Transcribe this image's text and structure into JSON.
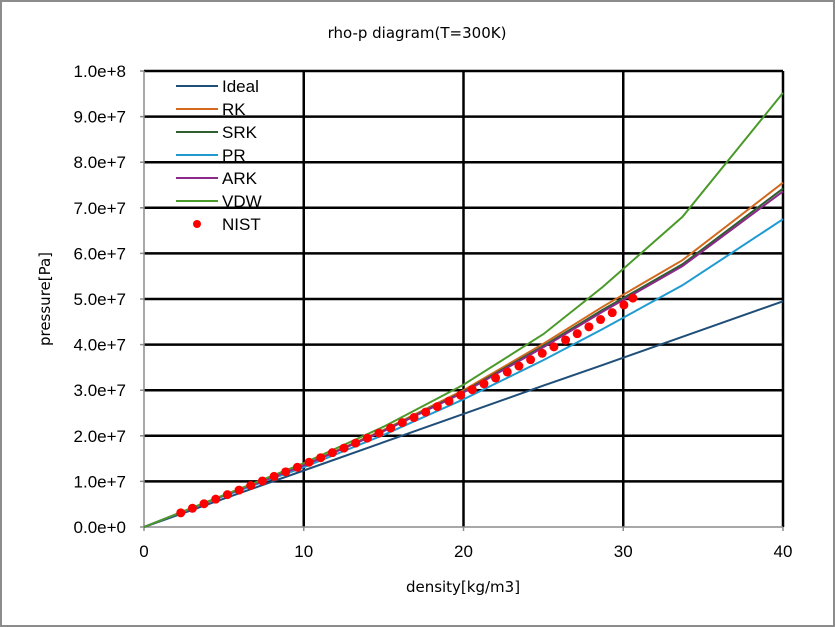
{
  "chart_data": {
    "type": "line",
    "title": "rho-p diagram(T=300K)",
    "xlabel": "density[kg/m3]",
    "ylabel": "pressure[Pa]",
    "xlim": [
      0,
      40
    ],
    "ylim": [
      0,
      100000000
    ],
    "grid": true,
    "legend": "top-left",
    "x_ticks": [
      0,
      10,
      20,
      30,
      40
    ],
    "x_tick_labels": [
      "0",
      "10",
      "20",
      "30",
      "40"
    ],
    "y_ticks": [
      0,
      10000000,
      20000000,
      30000000,
      40000000,
      50000000,
      60000000,
      70000000,
      80000000,
      90000000,
      100000000
    ],
    "y_tick_labels": [
      "0.0e+0",
      "1.0e+7",
      "2.0e+7",
      "3.0e+7",
      "4.0e+7",
      "5.0e+7",
      "6.0e+7",
      "7.0e+7",
      "8.0e+7",
      "9.0e+7",
      "1.0e+8"
    ],
    "series": [
      {
        "name": "Ideal",
        "kind": "line",
        "color": "#1f4e79",
        "x": [
          0,
          5,
          10,
          15,
          20,
          25,
          28.7,
          33.7,
          40
        ],
        "y": [
          0,
          6200000,
          12400000,
          18600000,
          24800000,
          31000000,
          35500000,
          41700000,
          49500000
        ]
      },
      {
        "name": "RK",
        "kind": "line",
        "color": "#d2691e",
        "x": [
          0,
          5,
          10,
          15,
          20,
          25,
          28.7,
          33.7,
          40
        ],
        "y": [
          0,
          6900000,
          13600000,
          21300000,
          30000000,
          40200000,
          48300000,
          58500000,
          75500000
        ]
      },
      {
        "name": "SRK",
        "kind": "line",
        "color": "#2e5e2e",
        "x": [
          0,
          5,
          10,
          15,
          20,
          25,
          28.7,
          33.7,
          40
        ],
        "y": [
          0,
          6900000,
          13500000,
          21100000,
          29700000,
          39700000,
          47600000,
          57600000,
          74200000
        ]
      },
      {
        "name": "PR",
        "kind": "line",
        "color": "#1f9bd1",
        "x": [
          0,
          5,
          10,
          15,
          20,
          25,
          28.7,
          33.7,
          40
        ],
        "y": [
          0,
          6800000,
          13100000,
          20200000,
          28000000,
          36600000,
          43400000,
          53000000,
          67500000
        ]
      },
      {
        "name": "ARK",
        "kind": "line",
        "color": "#8b2a8b",
        "x": [
          0,
          5,
          10,
          15,
          20,
          25,
          28.7,
          33.7,
          40
        ],
        "y": [
          0,
          6900000,
          13500000,
          21000000,
          29500000,
          39400000,
          47200000,
          57200000,
          73600000
        ]
      },
      {
        "name": "VDW",
        "kind": "line",
        "color": "#4a9a2a",
        "x": [
          0,
          5,
          10,
          15,
          20,
          25,
          28.7,
          33.7,
          40
        ],
        "y": [
          0,
          7000000,
          14000000,
          22000000,
          31200000,
          42300000,
          52600000,
          68000000,
          95200000
        ]
      },
      {
        "name": "NIST",
        "kind": "scatter",
        "color": "#ff0000",
        "x": [
          2.3,
          3.03,
          3.76,
          4.49,
          5.22,
          5.95,
          6.68,
          7.41,
          8.14,
          8.87,
          9.6,
          10.33,
          11.06,
          11.79,
          12.52,
          13.25,
          13.98,
          14.71,
          15.44,
          16.17,
          16.9,
          17.63,
          18.36,
          19.09,
          19.82,
          20.55,
          21.28,
          22.01,
          22.74,
          23.47,
          24.2,
          24.93,
          25.66,
          26.39,
          27.12,
          27.85,
          28.58,
          29.31,
          30.04,
          30.6
        ],
        "y": [
          3100000,
          4100000,
          5100000,
          6100000,
          7100000,
          8100000,
          9100000,
          10100000,
          11100000,
          12100000,
          13100000,
          14200000,
          15200000,
          16300000,
          17300000,
          18400000,
          19500000,
          20600000,
          21700000,
          22900000,
          24000000,
          25200000,
          26400000,
          27600000,
          28900000,
          30100000,
          31400000,
          32700000,
          34000000,
          35300000,
          36700000,
          38100000,
          39500000,
          41000000,
          42400000,
          43900000,
          45500000,
          47000000,
          48700000,
          50200000
        ]
      }
    ]
  }
}
